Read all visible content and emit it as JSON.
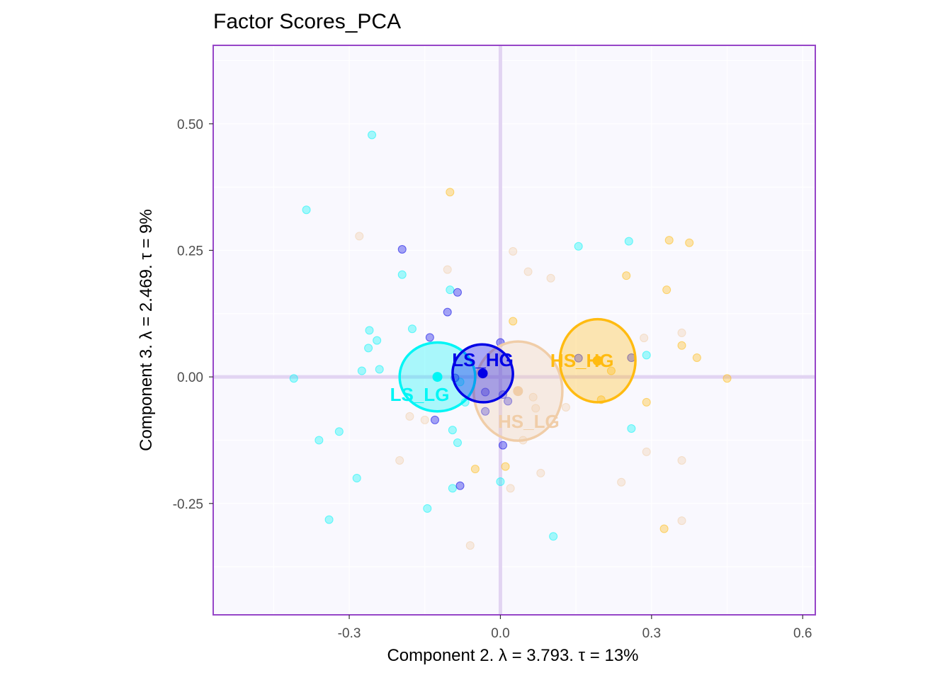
{
  "chart_data": {
    "type": "scatter",
    "title": "Factor Scores_PCA",
    "xlabel": "Component 2.   λ = 3.793.  τ = 13%",
    "ylabel": "Component 3.   λ = 2.469.  τ = 9%",
    "xlim": [
      -0.57,
      0.625
    ],
    "ylim": [
      -0.47,
      0.655
    ],
    "x_ticks": [
      -0.3,
      0.0,
      0.3,
      0.6
    ],
    "x_tick_labels": [
      "-0.3",
      "0.0",
      "0.3",
      "0.6"
    ],
    "y_ticks": [
      -0.25,
      0.0,
      0.25,
      0.5
    ],
    "y_tick_labels": [
      "-0.25",
      "0.00",
      "0.25",
      "0.50"
    ],
    "grid": true,
    "legend": "none",
    "colors": {
      "panel_bg": "#f9f8fe",
      "panel_border": "#9645c8",
      "zero_lines": "#e2d4f2",
      "grid": "#ffffff"
    },
    "series": [
      {
        "name": "LS_LG",
        "color": "#00f5f5",
        "mean": [
          -0.125,
          0.0
        ],
        "ellipse": {
          "rx": 0.075,
          "ry": 0.068
        },
        "points": [
          [
            -0.255,
            0.478
          ],
          [
            -0.385,
            0.33
          ],
          [
            -0.195,
            0.202
          ],
          [
            -0.1,
            0.172
          ],
          [
            -0.26,
            0.092
          ],
          [
            -0.175,
            0.095
          ],
          [
            -0.262,
            0.057
          ],
          [
            -0.245,
            0.072
          ],
          [
            -0.24,
            0.015
          ],
          [
            -0.275,
            0.012
          ],
          [
            -0.41,
            -0.003
          ],
          [
            -0.08,
            -0.01
          ],
          [
            -0.07,
            -0.05
          ],
          [
            -0.095,
            -0.105
          ],
          [
            -0.085,
            -0.13
          ],
          [
            -0.36,
            -0.125
          ],
          [
            -0.32,
            -0.108
          ],
          [
            -0.285,
            -0.2
          ],
          [
            -0.095,
            -0.22
          ],
          [
            -0.145,
            -0.26
          ],
          [
            -0.34,
            -0.282
          ],
          [
            0.0,
            -0.207
          ],
          [
            0.105,
            -0.315
          ],
          [
            0.155,
            0.258
          ],
          [
            0.255,
            0.268
          ],
          [
            0.29,
            0.043
          ],
          [
            0.26,
            -0.102
          ]
        ]
      },
      {
        "name": "LS_HG",
        "color": "#0000e6",
        "mean": [
          -0.035,
          0.007
        ],
        "ellipse": {
          "rx": 0.06,
          "ry": 0.057
        },
        "points": [
          [
            -0.195,
            0.252
          ],
          [
            -0.085,
            0.167
          ],
          [
            -0.105,
            0.128
          ],
          [
            -0.14,
            0.078
          ],
          [
            0.0,
            0.068
          ],
          [
            -0.09,
            -0.002
          ],
          [
            -0.03,
            -0.03
          ],
          [
            0.005,
            -0.035
          ],
          [
            0.015,
            -0.048
          ],
          [
            -0.03,
            -0.068
          ],
          [
            -0.13,
            -0.085
          ],
          [
            0.005,
            -0.135
          ],
          [
            -0.08,
            -0.215
          ],
          [
            0.155,
            0.037
          ],
          [
            0.26,
            0.038
          ]
        ]
      },
      {
        "name": "HS_LG",
        "color": "#f0cda8",
        "mean": [
          0.035,
          -0.028
        ],
        "ellipse": {
          "rx": 0.088,
          "ry": 0.098
        },
        "points": [
          [
            -0.28,
            0.278
          ],
          [
            -0.105,
            0.212
          ],
          [
            0.025,
            0.248
          ],
          [
            0.055,
            0.208
          ],
          [
            0.1,
            0.195
          ],
          [
            0.285,
            0.077
          ],
          [
            0.36,
            0.087
          ],
          [
            0.065,
            -0.04
          ],
          [
            0.07,
            -0.062
          ],
          [
            0.045,
            -0.125
          ],
          [
            0.13,
            -0.06
          ],
          [
            -0.2,
            -0.165
          ],
          [
            -0.18,
            -0.078
          ],
          [
            -0.15,
            -0.085
          ],
          [
            0.08,
            -0.19
          ],
          [
            0.02,
            -0.22
          ],
          [
            0.29,
            -0.148
          ],
          [
            0.36,
            -0.165
          ],
          [
            0.24,
            -0.208
          ],
          [
            0.36,
            -0.284
          ],
          [
            -0.06,
            -0.333
          ]
        ]
      },
      {
        "name": "HS_HG",
        "color": "#ffbb11",
        "mean": [
          0.193,
          0.032
        ],
        "ellipse": {
          "rx": 0.075,
          "ry": 0.082
        },
        "points": [
          [
            -0.1,
            0.365
          ],
          [
            0.335,
            0.27
          ],
          [
            0.375,
            0.265
          ],
          [
            0.25,
            0.2
          ],
          [
            0.33,
            0.172
          ],
          [
            0.025,
            0.11
          ],
          [
            0.36,
            0.062
          ],
          [
            0.39,
            0.038
          ],
          [
            0.45,
            -0.003
          ],
          [
            0.22,
            0.012
          ],
          [
            0.2,
            -0.045
          ],
          [
            0.29,
            -0.05
          ],
          [
            -0.05,
            -0.182
          ],
          [
            0.01,
            -0.177
          ],
          [
            0.325,
            -0.3
          ]
        ]
      }
    ]
  }
}
